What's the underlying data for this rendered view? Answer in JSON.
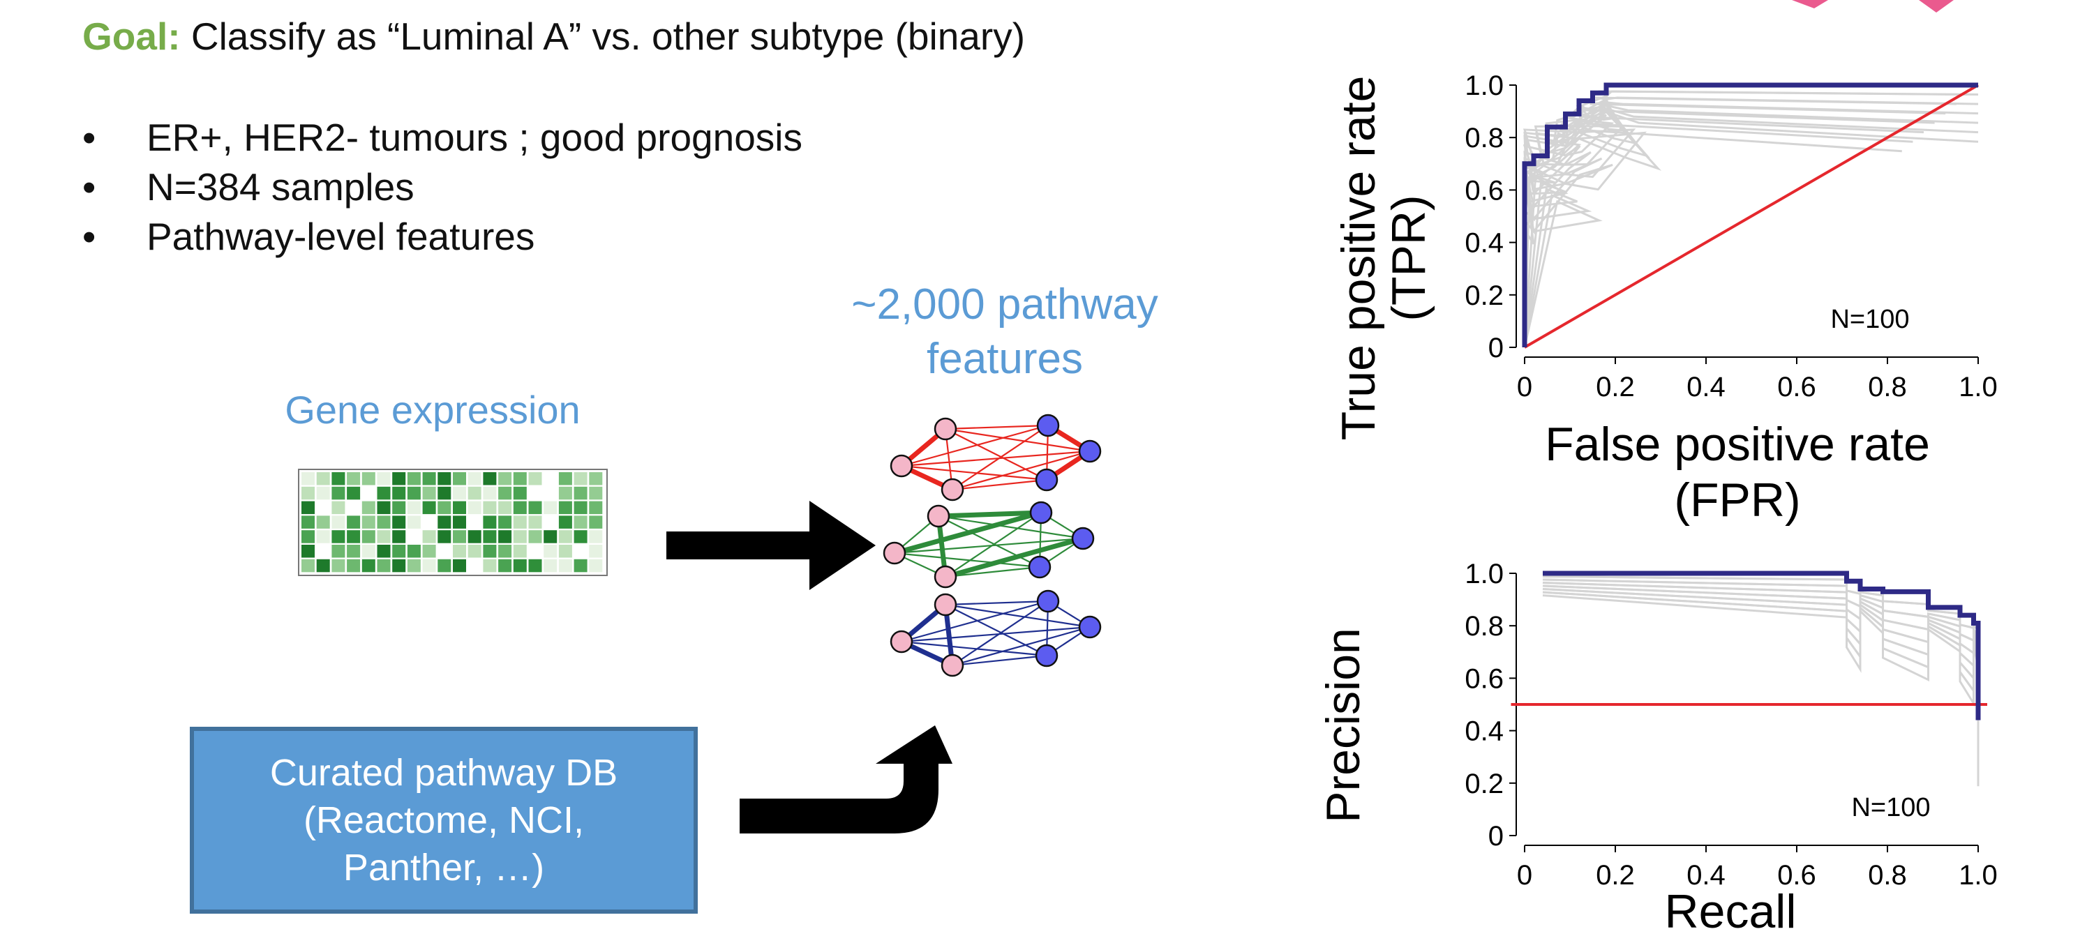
{
  "goal": {
    "label": "Goal:",
    "text": " Classify as “Luminal A” vs. other subtype (binary)"
  },
  "bullets": [
    {
      "marker": "•",
      "text": "ER+, HER2- tumours ; good prognosis"
    },
    {
      "marker": "•",
      "text": "N=384 samples"
    },
    {
      "marker": "•",
      "text": "Pathway-level features"
    }
  ],
  "gene_expression": {
    "label": "Gene expression"
  },
  "pathway_features": {
    "line1": "~2,000 pathway",
    "line2": "features"
  },
  "curated_db": {
    "text": "Curated pathway DB\n(Reactome, NCI,\nPanther, …)"
  },
  "colors": {
    "goal_green": "#77ac4a",
    "label_blue": "#5b9bd5",
    "roc_line": "#2e2a86",
    "baseline": "#e5272d",
    "network_red": "#e8261f",
    "network_green": "#2e8b3a",
    "network_navy": "#1f2f8f",
    "node_pink": "#f4b6c8",
    "node_blue": "#5c5cf0"
  },
  "chart_data": [
    {
      "type": "line",
      "xlabel": "False positive rate (FPR)",
      "ylabel": "True positive rate (TPR)",
      "xlim": [
        0,
        1
      ],
      "ylim": [
        0,
        1
      ],
      "xticks": [
        "0",
        "0.2",
        "0.4",
        "0.6",
        "0.8",
        "1.0"
      ],
      "yticks": [
        "0",
        "0.2",
        "0.4",
        "0.6",
        "0.8",
        "1.0"
      ],
      "annotation": "N=100",
      "series": [
        {
          "role": "mean curve",
          "x": [
            0,
            0,
            0.02,
            0.02,
            0.05,
            0.05,
            0.09,
            0.09,
            0.12,
            0.12,
            0.15,
            0.15,
            0.18,
            0.18,
            1.0
          ],
          "y": [
            0,
            0.7,
            0.7,
            0.73,
            0.73,
            0.84,
            0.84,
            0.89,
            0.89,
            0.94,
            0.94,
            0.97,
            0.97,
            1.0,
            1.0
          ]
        },
        {
          "role": "baseline",
          "x": [
            0,
            1
          ],
          "y": [
            0,
            1
          ]
        }
      ],
      "grid": false
    },
    {
      "type": "line",
      "xlabel": "Recall",
      "ylabel": "Precision",
      "xlim": [
        0,
        1
      ],
      "ylim": [
        0,
        1
      ],
      "xticks": [
        "0",
        "0.2",
        "0.4",
        "0.6",
        "0.8",
        "1.0"
      ],
      "yticks": [
        "0",
        "0.2",
        "0.4",
        "0.6",
        "0.8",
        "1.0"
      ],
      "annotation": "N=100",
      "series": [
        {
          "role": "mean curve",
          "x": [
            0.04,
            0.71,
            0.71,
            0.74,
            0.74,
            0.79,
            0.79,
            0.89,
            0.89,
            0.96,
            0.96,
            0.99,
            0.99,
            1.0,
            1.0
          ],
          "y": [
            1.0,
            1.0,
            0.97,
            0.97,
            0.94,
            0.94,
            0.93,
            0.93,
            0.87,
            0.87,
            0.84,
            0.84,
            0.81,
            0.81,
            0.44
          ]
        },
        {
          "role": "baseline",
          "x": [
            -0.03,
            1.02
          ],
          "y": [
            0.5,
            0.5
          ]
        }
      ],
      "grid": false
    }
  ]
}
